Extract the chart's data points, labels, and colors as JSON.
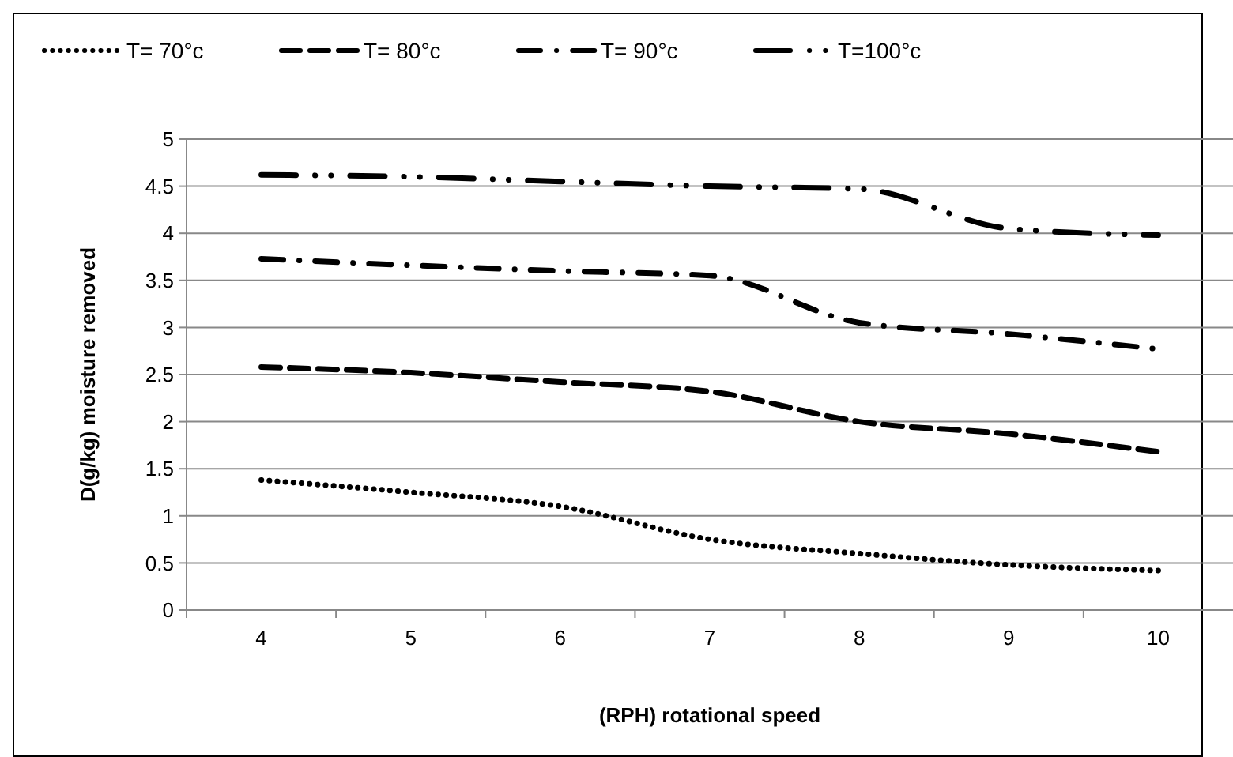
{
  "chart_data": {
    "type": "line",
    "xlabel": "(RPH) rotational speed",
    "ylabel": "D(g/kg) moisture removed",
    "categories": [
      "4",
      "5",
      "6",
      "7",
      "8",
      "9",
      "10"
    ],
    "ylim": [
      0,
      5
    ],
    "yticks": [
      0,
      0.5,
      1,
      1.5,
      2,
      2.5,
      3,
      3.5,
      4,
      4.5,
      5
    ],
    "grid": "y",
    "legend": "top",
    "series": [
      {
        "name": "T= 70°c",
        "color": "#000000",
        "line_style": "dotted",
        "values": [
          1.38,
          1.25,
          1.1,
          0.75,
          0.6,
          0.48,
          0.42
        ]
      },
      {
        "name": "T= 80°c",
        "color": "#000000",
        "line_style": "dashed",
        "values": [
          2.58,
          2.52,
          2.42,
          2.32,
          2.0,
          1.87,
          1.68
        ]
      },
      {
        "name": "T= 90°c",
        "color": "#000000",
        "line_style": "dashdot",
        "values": [
          3.73,
          3.66,
          3.6,
          3.55,
          3.05,
          2.93,
          2.77
        ]
      },
      {
        "name": "T=100°c",
        "color": "#000000",
        "line_style": "longdashdotdot",
        "values": [
          4.62,
          4.6,
          4.55,
          4.5,
          4.47,
          4.05,
          3.98
        ]
      }
    ]
  }
}
